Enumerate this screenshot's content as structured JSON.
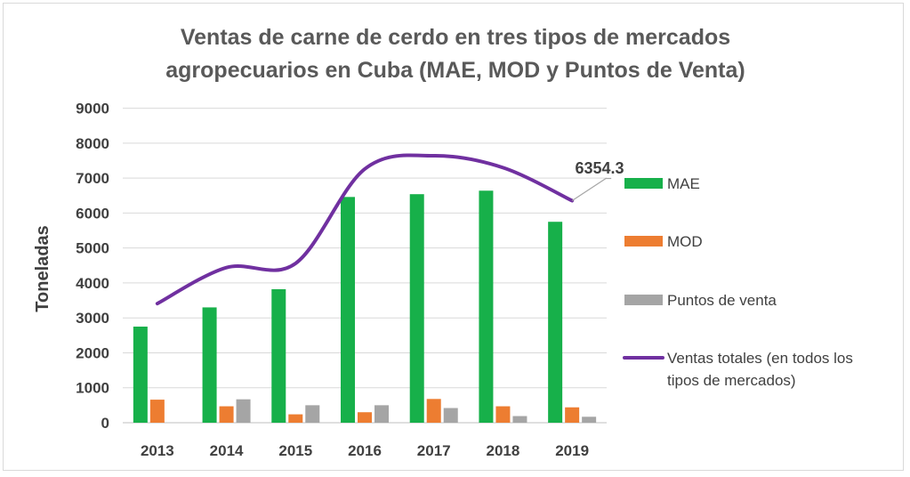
{
  "chart_data": {
    "type": "bar",
    "title_lines": [
      "Ventas de carne de cerdo en tres tipos de mercados",
      "agropecuarios en Cuba (MAE, MOD y Puntos de Venta)"
    ],
    "ylabel": "Toneladas",
    "xlabel": "",
    "categories": [
      "2013",
      "2014",
      "2015",
      "2016",
      "2017",
      "2018",
      "2019"
    ],
    "ylim": [
      0,
      9000
    ],
    "yticks": [
      "0",
      "1000",
      "2000",
      "3000",
      "4000",
      "5000",
      "6000",
      "7000",
      "8000",
      "9000"
    ],
    "grid": true,
    "legend_position": "right",
    "series": [
      {
        "name": "MAE",
        "kind": "bar",
        "color": "#17b04a",
        "values": [
          2750,
          3300,
          3820,
          6460,
          6540,
          6640,
          5750
        ]
      },
      {
        "name": "MOD",
        "kind": "bar",
        "color": "#ed7d31",
        "values": [
          660,
          470,
          240,
          300,
          680,
          470,
          440
        ]
      },
      {
        "name": "Puntos de venta",
        "kind": "bar",
        "color": "#a5a5a5",
        "values": [
          0,
          670,
          500,
          500,
          420,
          190,
          170
        ]
      },
      {
        "name_lines": [
          "Ventas totales (en todos los",
          "tipos de mercados)"
        ],
        "kind": "line",
        "color": "#7030a0",
        "values": [
          3410,
          4440,
          4560,
          7260,
          7640,
          7300,
          6354.3
        ]
      }
    ],
    "annotation": {
      "text": "6354.3",
      "series_index": 3,
      "point_index": 6
    }
  }
}
